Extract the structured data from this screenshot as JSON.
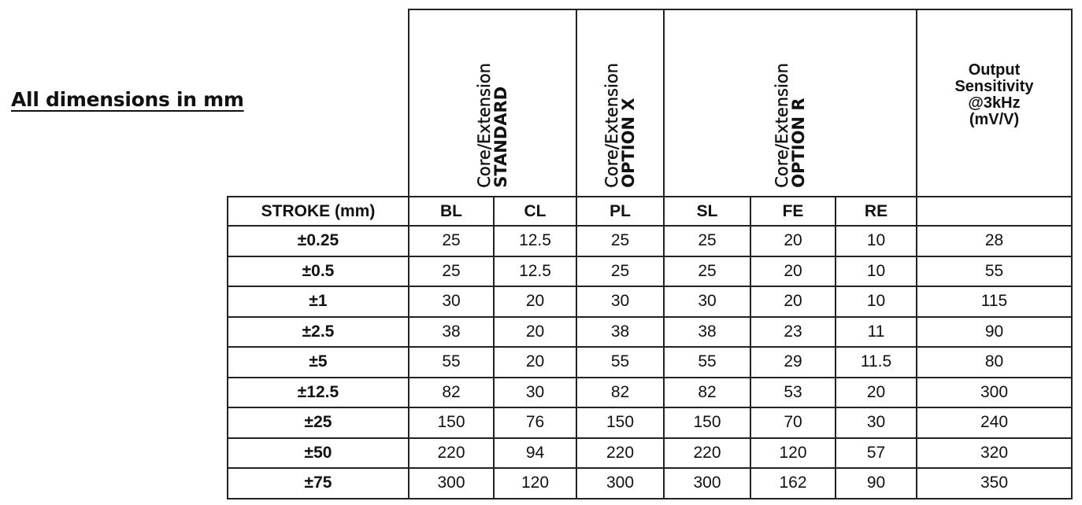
{
  "title": "All dimensions in mm",
  "groups": [
    {
      "line1": "Core/Extension",
      "line2": "STANDARD"
    },
    {
      "line1": "Core/Extension",
      "line2": "OPTION X"
    },
    {
      "line1": "Core/Extension",
      "line2": "OPTION R"
    }
  ],
  "output_header": [
    "Output",
    "Sensitivity",
    "@3kHz",
    "(mV/V)"
  ],
  "columns": [
    "STROKE (mm)",
    "BL",
    "CL",
    "PL",
    "SL",
    "FE",
    "RE",
    ""
  ],
  "rows": [
    [
      "±0.25",
      "25",
      "12.5",
      "25",
      "25",
      "20",
      "10",
      "28"
    ],
    [
      "±0.5",
      "25",
      "12.5",
      "25",
      "25",
      "20",
      "10",
      "55"
    ],
    [
      "±1",
      "30",
      "20",
      "30",
      "30",
      "20",
      "10",
      "115"
    ],
    [
      "±2.5",
      "38",
      "20",
      "38",
      "38",
      "23",
      "11",
      "90"
    ],
    [
      "±5",
      "55",
      "20",
      "55",
      "55",
      "29",
      "11.5",
      "80"
    ],
    [
      "±12.5",
      "82",
      "30",
      "82",
      "82",
      "53",
      "20",
      "300"
    ],
    [
      "±25",
      "150",
      "76",
      "150",
      "150",
      "70",
      "30",
      "240"
    ],
    [
      "±50",
      "220",
      "94",
      "220",
      "220",
      "120",
      "57",
      "320"
    ],
    [
      "±75",
      "300",
      "120",
      "300",
      "300",
      "162",
      "90",
      "350"
    ]
  ]
}
